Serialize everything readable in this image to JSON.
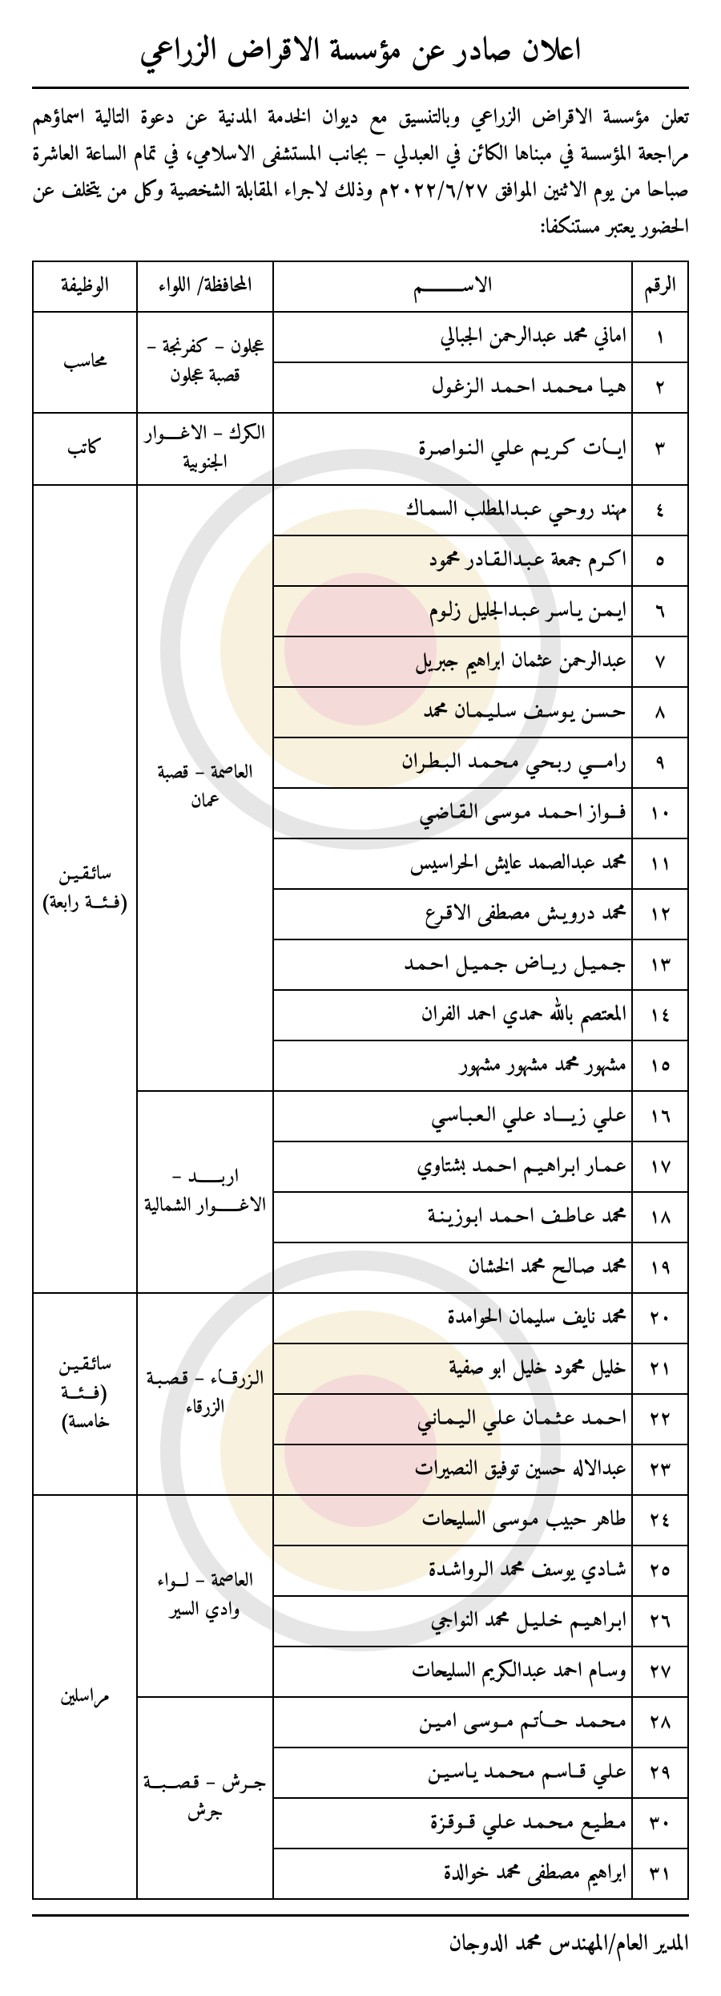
{
  "colors": {
    "text": "#000000",
    "background": "#ffffff",
    "border": "#000000",
    "watermark_ring_outer": "#7a7a7a",
    "watermark_ring_inner": "#d9b34a",
    "watermark_center": "#c43a2f"
  },
  "typography": {
    "title_fontsize_pt": 30,
    "body_fontsize_pt": 20,
    "table_header_fontsize_pt": 20,
    "table_cell_fontsize_pt": 19,
    "font_family": "Traditional Arabic"
  },
  "title": "اعلان صادر عن مؤسسة الاقراض الزراعي",
  "intro": "تعلن مؤسسة الاقراض الزراعي وبالتنسيق مع ديوان الخدمة المدنية عن دعوة التالية اسماؤهم مراجعة المؤسسة في مبناها الكائن في العبدلي – بجانب المستشفى الاسلامي، في تمام الساعة العاشرة صباحا من يوم الاثنين الموافق ٢٠٢٢/٦/٢٧م وذلك لاجراء المقابلة الشخصية وكل من يتخلف عن الحضور يعتبر مستنكفا:",
  "table": {
    "columns": [
      "الرقم",
      "الاســــــــــم",
      "المحافظة/ اللواء",
      "الوظيفة"
    ],
    "groups": [
      {
        "governorate": "عجلون – كفرنجة – قصبة عجلون",
        "job": "محاسب",
        "rows": [
          {
            "num": "١",
            "name": "اماني محمد عبدالرحمن الجبالي"
          },
          {
            "num": "٢",
            "name": "هـيـا مـحـمـد احـمـد الـزغـول"
          }
        ]
      },
      {
        "governorate": "الكرك – الاغـــــوار الجنوبية",
        "job": "كاتب",
        "rows": [
          {
            "num": "٣",
            "name": "ايـــات كـريـم عـلـي الـنـواصـرة"
          }
        ]
      },
      {
        "governorate": "العاصمة – قصبة عمان",
        "job": "سائـقـيـن (فــئـــة رابعة)",
        "job_rowspan": 16,
        "rows": [
          {
            "num": "٤",
            "name": "مهند روحـي عـبـدالمطلب السمـاك"
          },
          {
            "num": "٥",
            "name": "اكـرم جمعة عـبـدالـقـادر محمود"
          },
          {
            "num": "٦",
            "name": "ايـمـن يـاسـر عـبـدالجليل زلـوم"
          },
          {
            "num": "٧",
            "name": "عبدالرحمن عثمان ابراهيم جبريل"
          },
          {
            "num": "٨",
            "name": "حـسـن يـوسـف سـلـيـمـان محمد"
          },
          {
            "num": "٩",
            "name": "رامــــي ربـحـي مـحـمـد الـبـطـران"
          },
          {
            "num": "١٠",
            "name": "فـــواز احـمـد مـوسـى الـقـاضـي"
          },
          {
            "num": "١١",
            "name": "محمد عبدالصمد عايش الحراسيس"
          },
          {
            "num": "١٢",
            "name": "محمد درويـش مصطفى الاقـرع"
          },
          {
            "num": "١٣",
            "name": "جـمـيـل ريــاض جـمـيـل احـمـد"
          },
          {
            "num": "١٤",
            "name": "المعتصم بالله حمدي احمد الفران"
          },
          {
            "num": "١٥",
            "name": "مشهور محمد مشهور مشهور"
          }
        ]
      },
      {
        "governorate": "اربـــــــد – الاغـــــــوار الشمالية",
        "rows": [
          {
            "num": "١٦",
            "name": "عـلـي زيــــاد عـلـي الـعـبـاسـي"
          },
          {
            "num": "١٧",
            "name": "عـمـار ابـراهـيـم احـمـد بشتاوي"
          },
          {
            "num": "١٨",
            "name": "محمد عـاطـف احـمـد ابـوزيـنـة"
          },
          {
            "num": "١٩",
            "name": "محمد صـالـح محمد الخشان"
          }
        ]
      },
      {
        "governorate": "الـزرقـــاء – قـصـبـة الزرقاء",
        "job": "سائـقـيـن (فـــئـــة خامسة)",
        "rows": [
          {
            "num": "٢٠",
            "name": "محمد نايف سليمان الحوامدة"
          },
          {
            "num": "٢١",
            "name": "خليل محمود خليل ابو صفية"
          },
          {
            "num": "٢٢",
            "name": "احـمـد عـثـمـان عـلـي الـيـمـانـي"
          },
          {
            "num": "٢٣",
            "name": "عبدالاله حسين توفيق النصيرات"
          }
        ]
      },
      {
        "governorate": "العاصمة – لـــواء وادي السير",
        "job": "مراسلين",
        "job_rowspan": 8,
        "rows": [
          {
            "num": "٢٤",
            "name": "طاهر حبيب مـوسـى السليحات"
          },
          {
            "num": "٢٥",
            "name": "شـادي يوسف محمد الـرواشـدة"
          },
          {
            "num": "٢٦",
            "name": "ابـراهـيـم خـلـيـل محمد النواجي"
          },
          {
            "num": "٢٧",
            "name": "وسـام احمد عبدالكريم السليحات"
          }
        ]
      },
      {
        "governorate": "جــرش – قـصـــبـــة جرش",
        "rows": [
          {
            "num": "٢٨",
            "name": "مـحـمـد حـــاتـم مــوسـى امـيـن"
          },
          {
            "num": "٢٩",
            "name": "عـلـي قــاسـم مـحـمـد يـاسـيـن"
          },
          {
            "num": "٣٠",
            "name": "مـطـيـع مـحـمـد عـلـي قــوقـزة"
          },
          {
            "num": "٣١",
            "name": "ابراهيم مصطفى محمد خوالدة"
          }
        ]
      }
    ]
  },
  "footer": "المدير العام/المهندس محمد الدوجان"
}
